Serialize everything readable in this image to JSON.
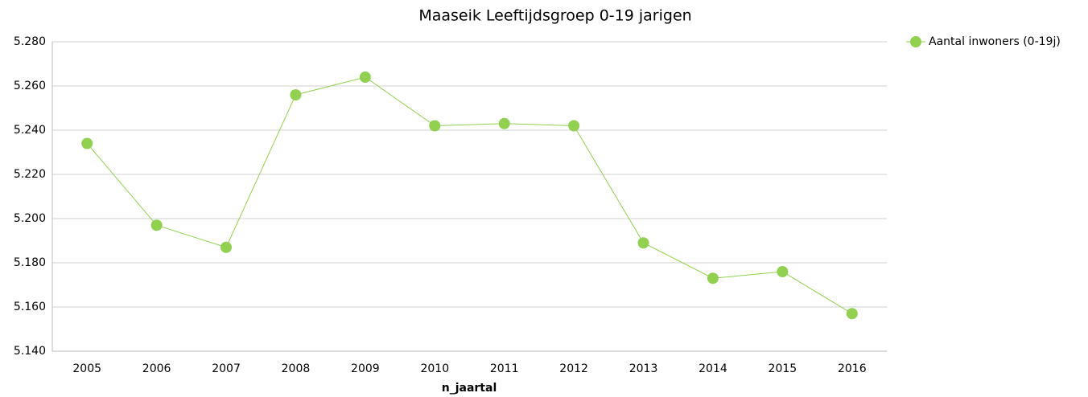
{
  "chart_data": {
    "type": "line",
    "title": "Maaseik  Leeftijdsgroep 0-19 jarigen",
    "x_label": "n_jaartal",
    "categories": [
      "2005",
      "2006",
      "2007",
      "2008",
      "2009",
      "2010",
      "2011",
      "2012",
      "2013",
      "2014",
      "2015",
      "2016"
    ],
    "series": [
      {
        "name": "Aantal inwoners (0-19j)",
        "color": "#92d050",
        "values": [
          5234,
          5197,
          5187,
          5256,
          5264,
          5242,
          5243,
          5242,
          5189,
          5173,
          5176,
          5157
        ]
      }
    ],
    "ylim": [
      5140,
      5280
    ],
    "yticks": [
      {
        "value": 5140,
        "label": "5.140"
      },
      {
        "value": 5160,
        "label": "5.160"
      },
      {
        "value": 5180,
        "label": "5.180"
      },
      {
        "value": 5200,
        "label": "5.200"
      },
      {
        "value": 5220,
        "label": "5.220"
      },
      {
        "value": 5240,
        "label": "5.240"
      },
      {
        "value": 5260,
        "label": "5.260"
      },
      {
        "value": 5280,
        "label": "5.280"
      }
    ],
    "grid": true,
    "legend": "top-right"
  }
}
